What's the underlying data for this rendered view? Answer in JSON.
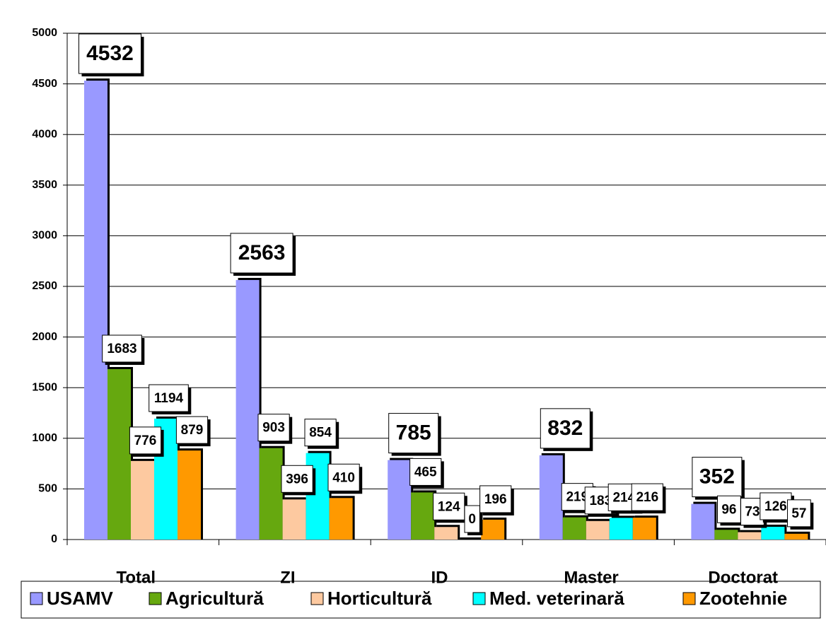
{
  "chart_data": {
    "type": "bar",
    "categories": [
      "Total",
      "ZI",
      "ID",
      "Master",
      "Doctorat"
    ],
    "series": [
      {
        "name": "USAMV",
        "color": "#9999ff",
        "values": [
          4532,
          2563,
          785,
          832,
          352
        ]
      },
      {
        "name": "Agricultură",
        "color": "#66a80f",
        "values": [
          1683,
          903,
          465,
          219,
          96
        ]
      },
      {
        "name": "Horticultură",
        "color": "#fdc9a0",
        "values": [
          776,
          396,
          124,
          183,
          73
        ]
      },
      {
        "name": "Med. veterinară",
        "color": "#00ffff",
        "values": [
          1194,
          854,
          0,
          214,
          126
        ]
      },
      {
        "name": "Zootehnie",
        "color": "#ff9900",
        "values": [
          879,
          410,
          196,
          216,
          57
        ]
      }
    ],
    "ylim": [
      0,
      5000
    ],
    "yticks": [
      0,
      500,
      1000,
      1500,
      2000,
      2500,
      3000,
      3500,
      4000,
      4500,
      5000
    ],
    "grid": true,
    "legend": "bottom"
  }
}
